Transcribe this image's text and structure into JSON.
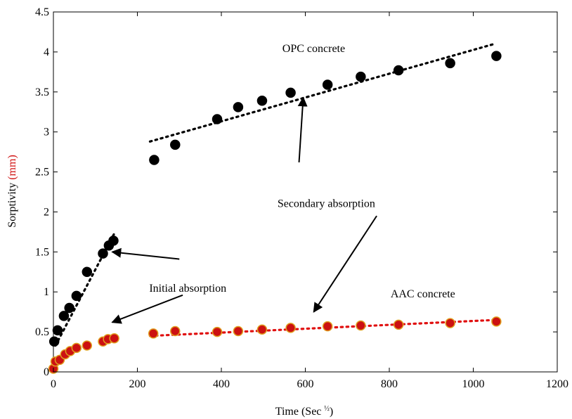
{
  "chart_data": {
    "type": "scatter",
    "title": "",
    "xlabel": {
      "main": "Time (Sec ",
      "sup": "½",
      "close": ")"
    },
    "ylabel": {
      "main": "Sorptivity ",
      "unit": "(mm)",
      "unit_color": "#d01010"
    },
    "xlim": [
      0,
      1200
    ],
    "ylim": [
      0,
      4.5
    ],
    "xticks": [
      0,
      200,
      400,
      600,
      800,
      1000,
      1200
    ],
    "yticks": [
      0,
      0.5,
      1,
      1.5,
      2,
      2.5,
      3,
      3.5,
      4,
      4.5
    ],
    "ytick_labels": [
      "0",
      "0.5",
      "1",
      "1.5",
      "2",
      "2.5",
      "3",
      "3.5",
      "4",
      "4.5"
    ],
    "grid": false,
    "series": [
      {
        "name": "OPC concrete",
        "color": "#000000",
        "marker_edge": "#000000",
        "points": [
          [
            2,
            0.38
          ],
          [
            10,
            0.52
          ],
          [
            25,
            0.7
          ],
          [
            38,
            0.8
          ],
          [
            55,
            0.95
          ],
          [
            80,
            1.25
          ],
          [
            118,
            1.48
          ],
          [
            132,
            1.58
          ],
          [
            143,
            1.64
          ],
          [
            240,
            2.65
          ],
          [
            290,
            2.84
          ],
          [
            390,
            3.16
          ],
          [
            440,
            3.31
          ],
          [
            497,
            3.39
          ],
          [
            565,
            3.49
          ],
          [
            653,
            3.59
          ],
          [
            732,
            3.69
          ],
          [
            822,
            3.77
          ],
          [
            945,
            3.86
          ],
          [
            1055,
            3.95
          ]
        ]
      },
      {
        "name": "AAC concrete",
        "color": "#cc1111",
        "marker_edge": "#e0a020",
        "points": [
          [
            0,
            0.04
          ],
          [
            5,
            0.13
          ],
          [
            15,
            0.15
          ],
          [
            28,
            0.22
          ],
          [
            40,
            0.26
          ],
          [
            55,
            0.3
          ],
          [
            80,
            0.33
          ],
          [
            118,
            0.38
          ],
          [
            130,
            0.41
          ],
          [
            145,
            0.42
          ],
          [
            238,
            0.48
          ],
          [
            290,
            0.51
          ],
          [
            390,
            0.5
          ],
          [
            440,
            0.51
          ],
          [
            497,
            0.53
          ],
          [
            565,
            0.55
          ],
          [
            653,
            0.57
          ],
          [
            732,
            0.58
          ],
          [
            822,
            0.59
          ],
          [
            945,
            0.61
          ],
          [
            1055,
            0.63
          ]
        ]
      }
    ],
    "trendlines": [
      {
        "series": "OPC concrete",
        "color": "#000000",
        "from": [
          5,
          0.33
        ],
        "to": [
          145,
          1.73
        ]
      },
      {
        "series": "OPC concrete",
        "color": "#000000",
        "from": [
          230,
          2.88
        ],
        "to": [
          1050,
          4.1
        ]
      },
      {
        "series": "AAC concrete",
        "color": "#e01010",
        "from": [
          230,
          0.45
        ],
        "to": [
          1055,
          0.65
        ]
      }
    ],
    "annotations": [
      {
        "id": "opc-label",
        "text": "OPC concrete",
        "at": [
          620,
          4.0
        ]
      },
      {
        "id": "aac-label",
        "text": "AAC concrete",
        "at": [
          880,
          0.93
        ]
      },
      {
        "id": "secondary-label",
        "text": "Secondary absorption",
        "at": [
          650,
          2.06
        ]
      },
      {
        "id": "initial-label",
        "text": "Initial absorption",
        "at": [
          320,
          1.0
        ]
      }
    ],
    "arrows": [
      {
        "from": [
          585,
          2.62
        ],
        "to": [
          595,
          3.43
        ]
      },
      {
        "from": [
          308,
          0.96
        ],
        "to": [
          140,
          0.62
        ]
      },
      {
        "from": [
          300,
          1.41
        ],
        "to": [
          140,
          1.5
        ]
      },
      {
        "from": [
          770,
          1.95
        ],
        "to": [
          620,
          0.75
        ]
      }
    ]
  }
}
